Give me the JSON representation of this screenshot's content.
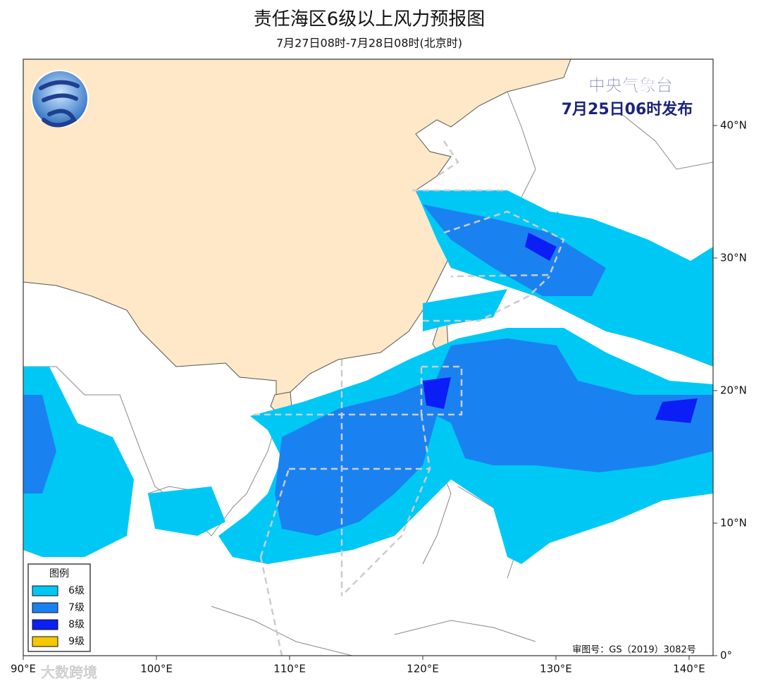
{
  "header": {
    "title": "责任海区6级以上风力预报图",
    "subtitle": "7月27日08时-7月28日08时(北京时)"
  },
  "issuer": {
    "agency": "中央气象台",
    "issued": "7月25日06时发布"
  },
  "legend": {
    "title": "图例",
    "items": [
      {
        "label": "6级",
        "color": "#00c8f5"
      },
      {
        "label": "7级",
        "color": "#1a82f0"
      },
      {
        "label": "8级",
        "color": "#0a1ef5"
      },
      {
        "label": "9级",
        "color": "#f5c800"
      }
    ]
  },
  "map": {
    "lonlim": [
      90,
      141.8
    ],
    "latlim": [
      0,
      45
    ],
    "lonticks": [
      {
        "value": 90,
        "label": "90°E"
      },
      {
        "value": 100,
        "label": "100°E"
      },
      {
        "value": 110,
        "label": "110°E"
      },
      {
        "value": 120,
        "label": "120°E"
      },
      {
        "value": 130,
        "label": "130°E"
      },
      {
        "value": 140,
        "label": "140°E"
      }
    ],
    "latticks": [
      {
        "value": 0,
        "label": "0°"
      },
      {
        "value": 10,
        "label": "10°N"
      },
      {
        "value": 20,
        "label": "20°N"
      },
      {
        "value": 30,
        "label": "30°N"
      },
      {
        "value": 40,
        "label": "40°N"
      }
    ]
  },
  "approval": "审图号：GS（2019）3082号",
  "watermark": "大数跨境"
}
